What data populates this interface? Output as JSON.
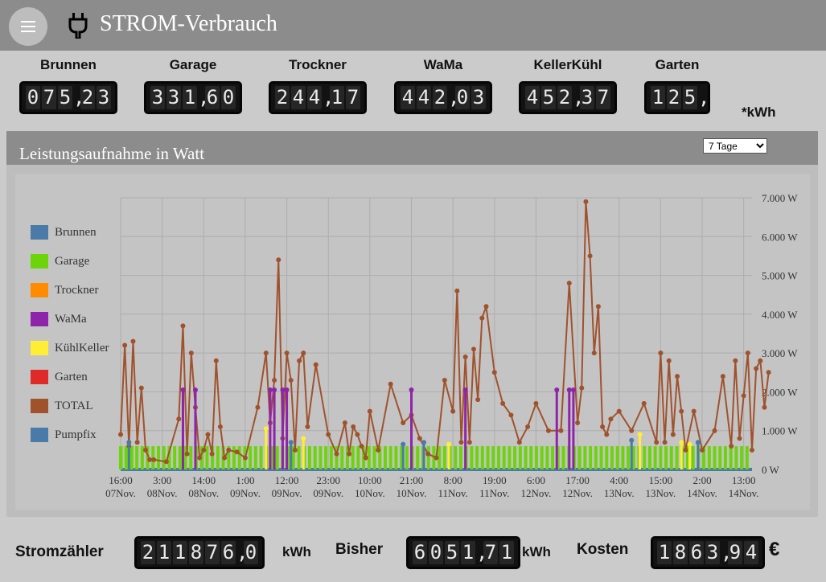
{
  "header": {
    "title": "STROM-Verbrauch",
    "menu_icon": "hamburger-menu-icon",
    "plug_icon": "power-plug-icon",
    "bar_color": "#8c8c8c"
  },
  "meters": [
    {
      "label": "Brunnen",
      "value": "075,23"
    },
    {
      "label": "Garage",
      "value": "331,60"
    },
    {
      "label": "Trockner",
      "value": "244,17"
    },
    {
      "label": "WaMa",
      "value": "442,03"
    },
    {
      "label": "KellerKühl",
      "value": "452,37"
    },
    {
      "label": "Garten",
      "value": "125,"
    }
  ],
  "meters_unit": "*kWh",
  "panel": {
    "title": "Leistungsaufnahme in Watt",
    "period_options": [
      "7 Tage"
    ],
    "period_selected": "7 Tage"
  },
  "legend": [
    {
      "name": "Brunnen",
      "color": "#4a7aa8"
    },
    {
      "name": "Garage",
      "color": "#6dd40c"
    },
    {
      "name": "Trockner",
      "color": "#ff8c00"
    },
    {
      "name": "WaMa",
      "color": "#8e24aa"
    },
    {
      "name": "KühlKeller",
      "color": "#ffee33"
    },
    {
      "name": "Garten",
      "color": "#e02a2a"
    },
    {
      "name": "TOTAL",
      "color": "#a0522d"
    },
    {
      "name": "Pumpfix",
      "color": "#4a7aa8"
    }
  ],
  "chart_data": {
    "type": "line",
    "ylabel": "",
    "ylim": [
      0,
      7000
    ],
    "y_ticks": [
      "0 W",
      "1.000 W",
      "2.000 W",
      "3.000 W",
      "4.000 W",
      "5.000 W",
      "6.000 W",
      "7.000 W"
    ],
    "x_ticks": [
      {
        "time": "16:00",
        "date": "07Nov."
      },
      {
        "time": "3:00",
        "date": "08Nov."
      },
      {
        "time": "14:00",
        "date": "08Nov."
      },
      {
        "time": "1:00",
        "date": "09Nov."
      },
      {
        "time": "12:00",
        "date": "09Nov."
      },
      {
        "time": "23:00",
        "date": "09Nov."
      },
      {
        "time": "10:00",
        "date": "10Nov."
      },
      {
        "time": "21:00",
        "date": "10Nov."
      },
      {
        "time": "8:00",
        "date": "11Nov."
      },
      {
        "time": "19:00",
        "date": "11Nov."
      },
      {
        "time": "6:00",
        "date": "12Nov."
      },
      {
        "time": "17:00",
        "date": "12Nov."
      },
      {
        "time": "4:00",
        "date": "13Nov."
      },
      {
        "time": "15:00",
        "date": "13Nov."
      },
      {
        "time": "2:00",
        "date": "14Nov."
      },
      {
        "time": "13:00",
        "date": "14Nov."
      }
    ],
    "grid": true,
    "legend_position": "left",
    "series": [
      {
        "name": "TOTAL",
        "color": "#a0522d",
        "x": [
          0,
          0.1,
          0.2,
          0.3,
          0.4,
          0.5,
          0.6,
          0.7,
          0.8,
          1.1,
          1.4,
          1.5,
          1.6,
          1.7,
          1.8,
          1.9,
          2.0,
          2.1,
          2.2,
          2.3,
          2.4,
          2.5,
          2.6,
          2.8,
          3.0,
          3.3,
          3.5,
          3.6,
          3.7,
          3.8,
          3.9,
          4.0,
          4.1,
          4.2,
          4.3,
          4.4,
          4.5,
          4.7,
          5.0,
          5.2,
          5.4,
          5.5,
          5.6,
          5.7,
          5.8,
          5.9,
          6.0,
          6.2,
          6.5,
          6.8,
          7.0,
          7.2,
          7.4,
          7.6,
          7.8,
          8.0,
          8.1,
          8.2,
          8.3,
          8.4,
          8.5,
          8.6,
          8.7,
          8.8,
          9.0,
          9.2,
          9.4,
          9.6,
          9.8,
          10.0,
          10.3,
          10.6,
          10.8,
          11.0,
          11.1,
          11.2,
          11.3,
          11.4,
          11.5,
          11.6,
          11.7,
          11.8,
          12.0,
          12.3,
          12.6,
          12.9,
          13.0,
          13.1,
          13.2,
          13.3,
          13.4,
          13.5,
          13.6,
          13.8,
          14.0,
          14.3,
          14.5,
          14.7,
          14.8,
          14.9,
          15.0,
          15.1,
          15.2,
          15.3,
          15.4,
          15.5,
          15.6
        ],
        "y": [
          900,
          3200,
          600,
          3300,
          700,
          2100,
          500,
          250,
          250,
          200,
          1300,
          3700,
          400,
          3000,
          1600,
          300,
          500,
          900,
          400,
          2800,
          1100,
          300,
          500,
          450,
          300,
          1600,
          3000,
          1200,
          2300,
          5400,
          800,
          3000,
          2300,
          500,
          2800,
          3000,
          1100,
          2700,
          900,
          400,
          1200,
          400,
          1100,
          900,
          600,
          300,
          1500,
          500,
          2200,
          1200,
          1400,
          800,
          400,
          300,
          2300,
          1500,
          4600,
          700,
          2900,
          700,
          3100,
          1800,
          3900,
          4200,
          2500,
          1700,
          1400,
          700,
          1100,
          1700,
          1000,
          1000,
          4800,
          1200,
          2100,
          6900,
          5500,
          3000,
          4200,
          1100,
          900,
          1300,
          1500,
          1000,
          1700,
          700,
          3000,
          700,
          2800,
          900,
          2400,
          1500,
          500,
          1500,
          500,
          1000,
          2400,
          600,
          2800,
          800,
          1900,
          3000,
          500,
          2600,
          2800,
          1600,
          2500
        ]
      },
      {
        "name": "WaMa",
        "color": "#8e24aa",
        "x": [
          1.5,
          1.8,
          3.6,
          3.7,
          3.9,
          4.0,
          7.0,
          8.3,
          10.5,
          10.8,
          10.9
        ],
        "y": [
          2050,
          2050,
          2050,
          2050,
          2050,
          2050,
          2050,
          2050,
          2050,
          2050,
          2050
        ]
      },
      {
        "name": "KühlKeller",
        "color": "#ffee33",
        "x": [
          3.5,
          4.4,
          7.9,
          12.5,
          13.5,
          13.7
        ],
        "y": [
          1050,
          800,
          650,
          900,
          700,
          650
        ]
      },
      {
        "name": "Brunnen",
        "color": "#4a7aa8",
        "x": [
          0.2,
          4.1,
          6.8,
          7.3,
          12.3,
          13.9
        ],
        "y": [
          700,
          700,
          650,
          700,
          750,
          700
        ]
      }
    ]
  },
  "bottom": {
    "stromzaehler_label": "Stromzähler",
    "stromzaehler_value": "211876,0",
    "stromzaehler_unit": "kWh",
    "bisher_label": "Bisher",
    "bisher_value": "6051,71",
    "bisher_unit": "kWh",
    "kosten_label": "Kosten",
    "kosten_value": "1863,94",
    "kosten_unit": "€"
  }
}
